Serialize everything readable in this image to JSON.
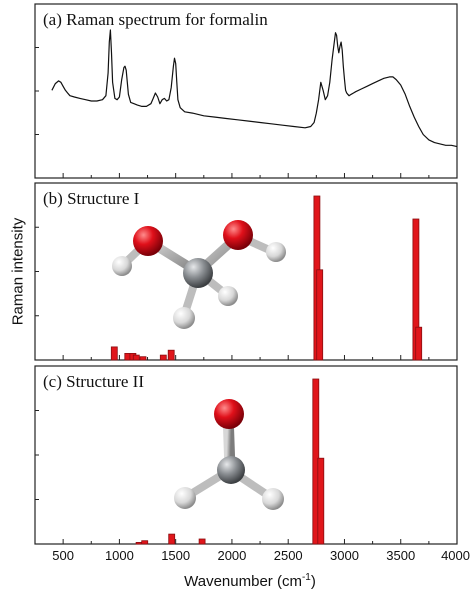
{
  "chart_data": [
    {
      "panel": "a",
      "type": "line",
      "title": "(a) Raman spectrum for formalin",
      "x": [
        400,
        430,
        460,
        480,
        500,
        520,
        540,
        560,
        600,
        650,
        700,
        750,
        800,
        850,
        880,
        900,
        910,
        920,
        930,
        940,
        960,
        980,
        1000,
        1020,
        1040,
        1050,
        1060,
        1070,
        1080,
        1100,
        1130,
        1160,
        1200,
        1240,
        1280,
        1300,
        1320,
        1340,
        1360,
        1380,
        1400,
        1420,
        1440,
        1460,
        1480,
        1490,
        1500,
        1510,
        1520,
        1540,
        1580,
        1650,
        1750,
        1850,
        1950,
        2050,
        2150,
        2250,
        2350,
        2450,
        2550,
        2650,
        2700,
        2730,
        2750,
        2770,
        2790,
        2810,
        2830,
        2850,
        2870,
        2890,
        2910,
        2920,
        2930,
        2940,
        2950,
        2960,
        2970,
        2980,
        2990,
        3000,
        3010,
        3020,
        3030,
        3040,
        3060,
        3080,
        3100,
        3150,
        3200,
        3250,
        3300,
        3350,
        3400,
        3430,
        3460,
        3500,
        3540,
        3580,
        3620,
        3660,
        3700,
        3750,
        3800,
        3850,
        3900,
        3950,
        4000
      ],
      "values": [
        52,
        57,
        59,
        58,
        55,
        52,
        50,
        48,
        47,
        46,
        45,
        44,
        44,
        45,
        48,
        65,
        88,
        97,
        80,
        58,
        46,
        45,
        47,
        60,
        69,
        70,
        67,
        58,
        49,
        43,
        42,
        41,
        40,
        40,
        42,
        46,
        50,
        47,
        42,
        45,
        46,
        44,
        45,
        54,
        70,
        76,
        72,
        58,
        45,
        39,
        36,
        35,
        33,
        32,
        31,
        30,
        29,
        28,
        27,
        26,
        25,
        24,
        25,
        28,
        35,
        45,
        58,
        52,
        45,
        48,
        58,
        75,
        88,
        95,
        93,
        85,
        80,
        85,
        88,
        82,
        70,
        60,
        52,
        50,
        49,
        48,
        49,
        50,
        51,
        53,
        55,
        57,
        59,
        61,
        62,
        62,
        60,
        56,
        49,
        40,
        32,
        25,
        19,
        15,
        13,
        12,
        11,
        11,
        10
      ],
      "ylim": [
        0,
        100
      ]
    },
    {
      "panel": "b",
      "type": "bar",
      "title": "(b) Structure I",
      "x": [
        955,
        1075,
        1120,
        1150,
        1210,
        1390,
        1460,
        2755,
        2780,
        3635,
        3660
      ],
      "values": [
        8,
        4,
        4,
        3,
        2,
        3,
        6,
        100,
        55,
        86,
        20
      ],
      "ylim": [
        0,
        100
      ]
    },
    {
      "panel": "c",
      "type": "bar",
      "title": "(c) Structure II",
      "x": [
        1175,
        1225,
        1465,
        1735,
        2745,
        2790
      ],
      "values": [
        1,
        2,
        6,
        3,
        100,
        52
      ],
      "ylim": [
        0,
        100
      ]
    }
  ],
  "xaxis": {
    "label": "Wavenumber (cm",
    "label_sup": "-1",
    "label_end": ")",
    "lim": [
      250,
      4000
    ],
    "tick_labels": [
      "500",
      "1000",
      "1500",
      "2000",
      "2500",
      "3000",
      "3500",
      "4000"
    ]
  },
  "yaxis": {
    "label": "Raman intensity"
  },
  "colors": {
    "bar": "#e0161b",
    "bar_dark": "#8a0d10",
    "line": "#111111",
    "atom_oxygen": "#d8101a",
    "atom_carbon": "#888c90",
    "atom_hydrogen": "#e4e4e4"
  }
}
